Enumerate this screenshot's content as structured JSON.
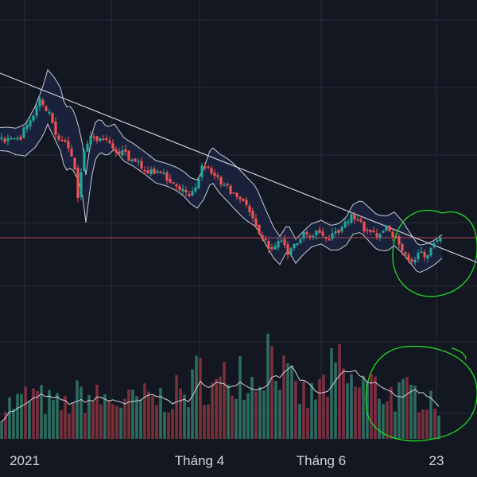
{
  "chart_data": {
    "type": "candlestick",
    "title": "",
    "xlabel": "",
    "ylabel": "",
    "x_ticks": [
      "2021",
      "Tháng 4",
      "Tháng 6",
      "23"
    ],
    "grid": true,
    "colors": {
      "background": "#131722",
      "grid": "#2a2e39",
      "up": "#26a69a",
      "down": "#ef5350",
      "band_fill": "#1c2340",
      "band_line": "#c9ccd6",
      "trendline": "#d1d4dc",
      "reference_line": "#b04a55",
      "annotation": "#22dd22",
      "volume_up": "#2e6b5e",
      "volume_down": "#7a2f3c",
      "volume_ma": "#d1d4dc"
    },
    "price_keypoints": [
      [
        0,
        175
      ],
      [
        10,
        178
      ],
      [
        22,
        176
      ],
      [
        34,
        160
      ],
      [
        44,
        140
      ],
      [
        50,
        122
      ],
      [
        58,
        135
      ],
      [
        66,
        150
      ],
      [
        72,
        175
      ],
      [
        80,
        172
      ],
      [
        88,
        190
      ],
      [
        94,
        215
      ],
      [
        98,
        250
      ],
      [
        102,
        220
      ],
      [
        108,
        180
      ],
      [
        116,
        170
      ],
      [
        124,
        178
      ],
      [
        134,
        172
      ],
      [
        146,
        188
      ],
      [
        158,
        195
      ],
      [
        172,
        205
      ],
      [
        186,
        216
      ],
      [
        200,
        220
      ],
      [
        212,
        225
      ],
      [
        222,
        232
      ],
      [
        230,
        240
      ],
      [
        238,
        244
      ],
      [
        246,
        232
      ],
      [
        256,
        206
      ],
      [
        266,
        218
      ],
      [
        278,
        228
      ],
      [
        290,
        240
      ],
      [
        300,
        250
      ],
      [
        312,
        260
      ],
      [
        324,
        285
      ],
      [
        334,
        305
      ],
      [
        342,
        315
      ],
      [
        352,
        298
      ],
      [
        362,
        316
      ],
      [
        372,
        305
      ],
      [
        382,
        296
      ],
      [
        394,
        292
      ],
      [
        406,
        299
      ],
      [
        416,
        298
      ],
      [
        426,
        290
      ],
      [
        434,
        276
      ],
      [
        444,
        272
      ],
      [
        454,
        282
      ],
      [
        464,
        292
      ],
      [
        476,
        294
      ],
      [
        486,
        288
      ],
      [
        496,
        298
      ],
      [
        506,
        312
      ],
      [
        516,
        326
      ],
      [
        526,
        323
      ],
      [
        536,
        318
      ],
      [
        546,
        310
      ],
      [
        555,
        294
      ]
    ],
    "volume_keypoints": [
      [
        0,
        40
      ],
      [
        20,
        45
      ],
      [
        40,
        55
      ],
      [
        60,
        45
      ],
      [
        80,
        40
      ],
      [
        100,
        55
      ],
      [
        120,
        50
      ],
      [
        140,
        48
      ],
      [
        160,
        45
      ],
      [
        180,
        50
      ],
      [
        200,
        50
      ],
      [
        220,
        55
      ],
      [
        240,
        60
      ],
      [
        250,
        85
      ],
      [
        270,
        60
      ],
      [
        290,
        80
      ],
      [
        300,
        95
      ],
      [
        320,
        70
      ],
      [
        335,
        110
      ],
      [
        345,
        120
      ],
      [
        355,
        80
      ],
      [
        370,
        60
      ],
      [
        390,
        50
      ],
      [
        410,
        70
      ],
      [
        425,
        90
      ],
      [
        440,
        65
      ],
      [
        460,
        70
      ],
      [
        480,
        60
      ],
      [
        500,
        55
      ],
      [
        520,
        55
      ],
      [
        535,
        60
      ],
      [
        550,
        50
      ],
      [
        556,
        20
      ]
    ]
  }
}
